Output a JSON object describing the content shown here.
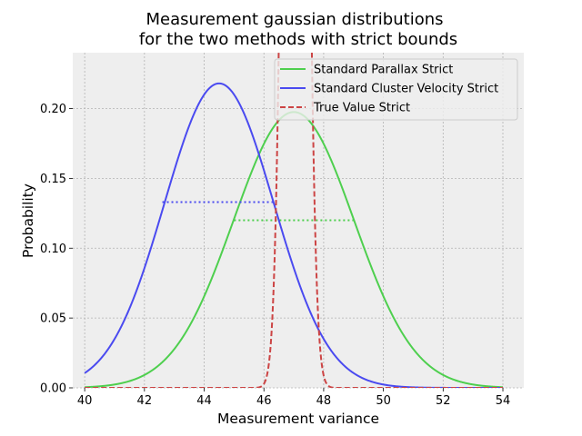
{
  "chart_data": {
    "type": "line",
    "title_lines": [
      "Measurement gaussian distributions",
      "for the two methods with strict bounds"
    ],
    "xlabel": "Measurement variance",
    "ylabel": "Probability",
    "xlim": [
      39.6,
      54.7
    ],
    "ylim": [
      0.0,
      0.24
    ],
    "xticks": [
      40,
      42,
      44,
      46,
      48,
      50,
      52,
      54
    ],
    "yticks": [
      0.0,
      0.05,
      0.1,
      0.15,
      0.2
    ],
    "ytick_labels": [
      "0.00",
      "0.05",
      "0.10",
      "0.15",
      "0.20"
    ],
    "grid": true,
    "legend_position": "top-right",
    "series": [
      {
        "name": "Standard Parallax Strict",
        "color": "#4ecf4e",
        "style": "solid",
        "distribution": "gaussian",
        "mean": 47.0,
        "std": 2.02,
        "x_range": [
          40,
          54
        ],
        "halfwidth_line": {
          "x": [
            45.0,
            49.0
          ],
          "y": 0.12
        }
      },
      {
        "name": "Standard Cluster Velocity Strict",
        "color": "#4a4af0",
        "style": "solid",
        "distribution": "gaussian",
        "mean": 44.5,
        "std": 1.83,
        "x_range": [
          40,
          54
        ],
        "halfwidth_line": {
          "x": [
            42.6,
            46.4
          ],
          "y": 0.133
        }
      },
      {
        "name": "True Value Strict",
        "color": "#cc4444",
        "style": "dashed",
        "distribution": "gaussian",
        "mean": 47.05,
        "std": 0.3,
        "x_range": [
          40,
          54
        ]
      }
    ]
  }
}
